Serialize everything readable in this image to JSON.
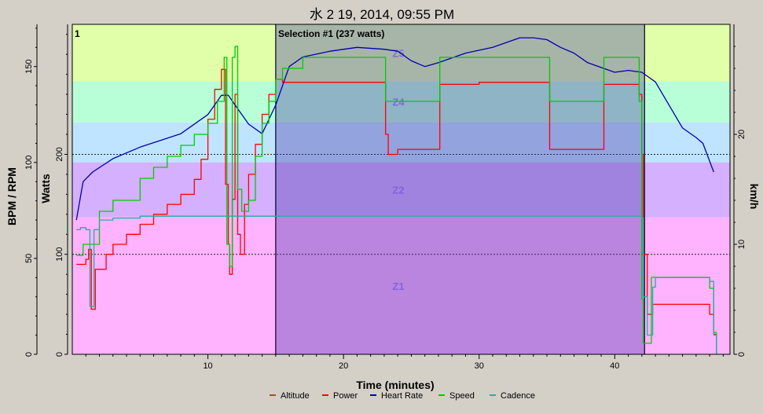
{
  "chart_data": {
    "type": "line",
    "title": "水 2 19, 2014, 09:55 PM",
    "xlabel": "Time (minutes)",
    "ylabel_left_outer": "BPM / RPM",
    "ylabel_left_inner": "Watts",
    "ylabel_right": "km/h",
    "xlim": [
      0,
      48.5
    ],
    "x_ticks": [
      10,
      20,
      30,
      40
    ],
    "bpm_ticks": [
      0,
      50,
      100,
      150
    ],
    "bpm_range": [
      0,
      172
    ],
    "watts_ticks": [
      0,
      100,
      200
    ],
    "watts_range": [
      0,
      330
    ],
    "kmh_ticks": [
      0,
      10,
      20
    ],
    "kmh_range": [
      0,
      30
    ],
    "lap_label": "1",
    "selection": {
      "label": "Selection #1 (237 watts)",
      "x0": 15,
      "x1": 42.2
    },
    "zones": [
      {
        "name": "Z1",
        "from": 0,
        "to": 137,
        "color": "#ffb3ff"
      },
      {
        "name": "Z2",
        "from": 137,
        "to": 192,
        "color": "#d4b0ff"
      },
      {
        "name": "",
        "from": 192,
        "to": 232,
        "color": "#bfe4ff"
      },
      {
        "name": "Z4",
        "from": 232,
        "to": 273,
        "color": "#b8ffd8"
      },
      {
        "name": "Z5",
        "from": 273,
        "to": 330,
        "color": "#e0ffa8"
      }
    ],
    "series": [
      {
        "name": "Altitude",
        "color": "#a05028",
        "axis": "bpm",
        "x": [],
        "values": []
      },
      {
        "name": "Power",
        "color": "#ff0000",
        "axis": "watts",
        "x": [
          0.3,
          1.0,
          1.2,
          1.4,
          1.7,
          2.5,
          3.0,
          4.0,
          5.0,
          6.0,
          7.0,
          8.0,
          9.0,
          9.5,
          10.0,
          10.5,
          11.0,
          11.3,
          11.5,
          11.6,
          11.8,
          12.0,
          12.2,
          12.4,
          12.7,
          13.0,
          13.5,
          14.0,
          14.5,
          15.0,
          15.5,
          16.0,
          18.0,
          20.0,
          22.0,
          23.0,
          23.1,
          23.3,
          24.0,
          25.0,
          26.0,
          27.0,
          27.1,
          29.0,
          30.0,
          31.0,
          32.0,
          33.0,
          34.0,
          35.0,
          35.2,
          36.0,
          37.0,
          38.0,
          39.0,
          39.2,
          40.0,
          41.0,
          41.8,
          42.0,
          42.1,
          42.4,
          42.8,
          43.0,
          43.5,
          44.0,
          45.0,
          46.0,
          47.0,
          47.3,
          47.5
        ],
        "values": [
          90,
          95,
          105,
          45,
          85,
          100,
          110,
          120,
          130,
          140,
          150,
          160,
          175,
          195,
          235,
          265,
          285,
          170,
          110,
          80,
          155,
          260,
          120,
          100,
          150,
          180,
          210,
          240,
          260,
          275,
          272,
          272,
          272,
          272,
          272,
          272,
          220,
          200,
          205,
          205,
          205,
          205,
          270,
          270,
          272,
          272,
          272,
          272,
          272,
          272,
          205,
          205,
          205,
          205,
          205,
          270,
          270,
          270,
          260,
          200,
          100,
          40,
          50,
          50,
          50,
          50,
          50,
          50,
          40,
          20,
          0
        ]
      },
      {
        "name": "Heart Rate",
        "color": "#0000b0",
        "axis": "bpm",
        "x": [
          0.3,
          0.8,
          1.5,
          3.0,
          5.0,
          8.0,
          10.0,
          11.0,
          11.5,
          12.0,
          13.0,
          14.0,
          15.0,
          16.0,
          17.0,
          19.0,
          21.0,
          23.0,
          24.0,
          25.0,
          26.0,
          27.0,
          29.0,
          31.0,
          33.0,
          34.0,
          35.0,
          36.0,
          37.0,
          38.0,
          40.0,
          41.0,
          42.0,
          43.0,
          44.0,
          45.0,
          46.0,
          46.5,
          47.3
        ],
        "values": [
          70,
          90,
          95,
          102,
          108,
          115,
          125,
          135,
          135,
          130,
          120,
          115,
          130,
          150,
          155,
          158,
          160,
          159,
          158,
          153,
          150,
          152,
          157,
          160,
          165,
          165,
          164,
          160,
          157,
          152,
          147,
          148,
          147,
          142,
          130,
          118,
          113,
          110,
          95
        ]
      },
      {
        "name": "Speed",
        "color": "#00cc00",
        "axis": "kmh",
        "x": [
          0.3,
          0.8,
          1.4,
          2.0,
          3.0,
          4.0,
          5.0,
          6.0,
          7.0,
          8.0,
          9.0,
          10.0,
          10.7,
          11.2,
          11.4,
          11.6,
          11.8,
          12.0,
          12.2,
          12.5,
          13.0,
          13.5,
          14.0,
          14.5,
          15.0,
          15.5,
          17.0,
          20.0,
          23.0,
          23.1,
          26.0,
          27.0,
          27.1,
          33.0,
          35.0,
          35.2,
          39.0,
          39.2,
          41.0,
          41.8,
          42.0,
          42.1,
          42.4,
          42.7,
          43.0,
          45.0,
          47.0,
          47.3,
          47.5
        ],
        "values": [
          9,
          10,
          10,
          13,
          14,
          14,
          16,
          17,
          18,
          19,
          20,
          21,
          23,
          27,
          10,
          8,
          27,
          28,
          15,
          13,
          14,
          18,
          21,
          23,
          25,
          26,
          27,
          27,
          27,
          23,
          23,
          23,
          27,
          27,
          27,
          23,
          23,
          27,
          27,
          23,
          5,
          1,
          1,
          7,
          7,
          7,
          6,
          2,
          0
        ]
      },
      {
        "name": "Cadence",
        "color": "#20b0a0",
        "axis": "bpm",
        "x": [
          0.3,
          0.6,
          1.0,
          1.3,
          1.6,
          2.0,
          3.0,
          5.0,
          10.0,
          15.0,
          20.0,
          25.0,
          30.0,
          35.0,
          40.0,
          42.0,
          42.1,
          42.4,
          42.8,
          43.0,
          45.0,
          47.0,
          47.3,
          47.5
        ],
        "values": [
          65,
          66,
          65,
          25,
          65,
          70,
          71,
          72,
          72,
          72,
          72,
          72,
          72,
          72,
          72,
          71,
          30,
          10,
          35,
          40,
          40,
          38,
          10,
          0
        ]
      }
    ],
    "legend_position": "bottom",
    "legend": [
      "Altitude",
      "Power",
      "Heart Rate",
      "Speed",
      "Cadence"
    ]
  }
}
